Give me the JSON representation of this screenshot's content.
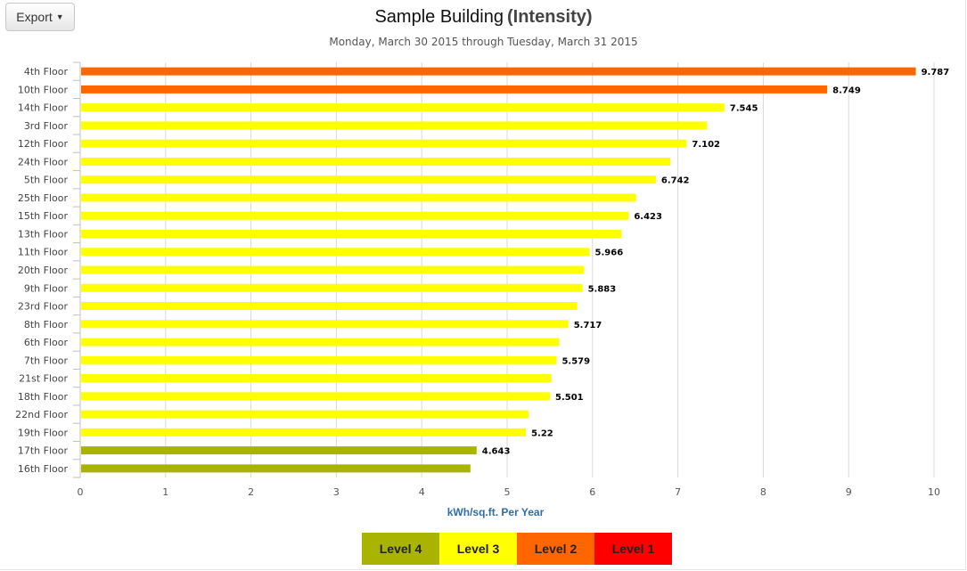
{
  "toolbar": {
    "export_label": "Export"
  },
  "chart_data": {
    "type": "bar",
    "orientation": "horizontal",
    "title": "Sample Building",
    "title_suffix": "(Intensity)",
    "subtitle": "Monday, March 30 2015 through Tuesday, March 31 2015",
    "xlabel": "kWh/sq.ft. Per Year",
    "xlim": [
      0,
      10
    ],
    "xticks": [
      0,
      1,
      2,
      3,
      4,
      5,
      6,
      7,
      8,
      9,
      10
    ],
    "grid": true,
    "categories": [
      "4th Floor",
      "10th Floor",
      "14th Floor",
      "3rd Floor",
      "12th Floor",
      "24th Floor",
      "5th Floor",
      "25th Floor",
      "15th Floor",
      "13th Floor",
      "11th Floor",
      "20th Floor",
      "9th Floor",
      "23rd Floor",
      "8th Floor",
      "6th Floor",
      "7th Floor",
      "21st Floor",
      "18th Floor",
      "22nd Floor",
      "19th Floor",
      "17th Floor",
      "16th Floor"
    ],
    "values": [
      9.787,
      8.749,
      7.545,
      7.34,
      7.102,
      6.91,
      6.742,
      6.51,
      6.423,
      6.34,
      5.966,
      5.9,
      5.883,
      5.82,
      5.717,
      5.61,
      5.579,
      5.52,
      5.501,
      5.25,
      5.22,
      4.643,
      4.57
    ],
    "data_labels": [
      "9.787",
      "8.749",
      "7.545",
      "",
      "7.102",
      "",
      "6.742",
      "",
      "6.423",
      "",
      "5.966",
      "",
      "5.883",
      "",
      "5.717",
      "",
      "5.579",
      "",
      "5.501",
      "",
      "5.22",
      "4.643",
      ""
    ],
    "levels": [
      "Level 2",
      "Level 2",
      "Level 3",
      "Level 3",
      "Level 3",
      "Level 3",
      "Level 3",
      "Level 3",
      "Level 3",
      "Level 3",
      "Level 3",
      "Level 3",
      "Level 3",
      "Level 3",
      "Level 3",
      "Level 3",
      "Level 3",
      "Level 3",
      "Level 3",
      "Level 3",
      "Level 3",
      "Level 4",
      "Level 4"
    ],
    "legend": {
      "placement": "bottom-center",
      "items": [
        {
          "name": "Level 4",
          "color": "#a8b400"
        },
        {
          "name": "Level 3",
          "color": "#ffff00"
        },
        {
          "name": "Level 2",
          "color": "#ff6600"
        },
        {
          "name": "Level 1",
          "color": "#ff0000"
        }
      ]
    }
  }
}
